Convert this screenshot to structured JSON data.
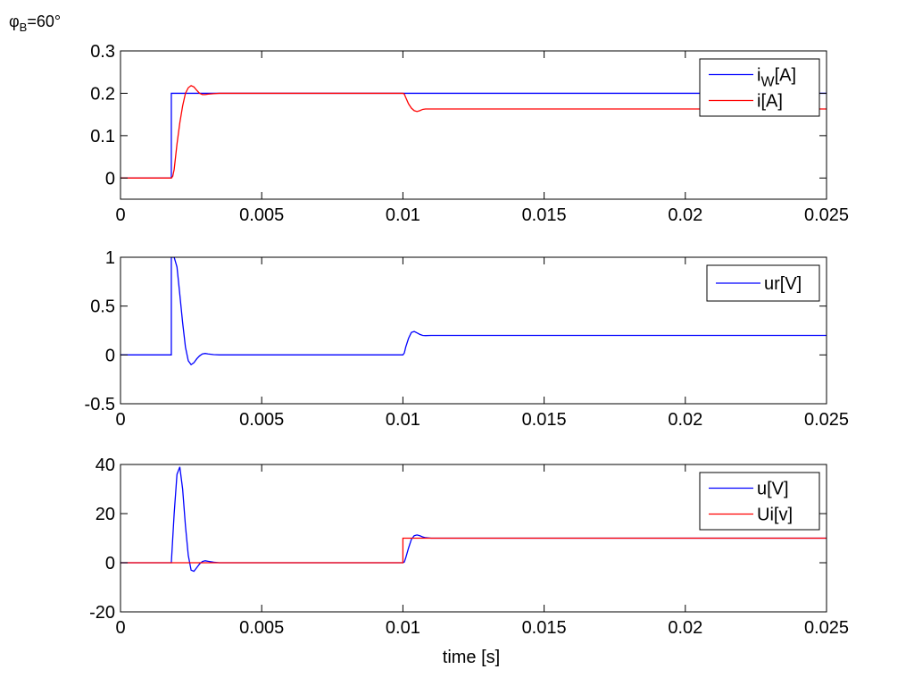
{
  "annotation": {
    "symbol": "φ",
    "subscript": "B",
    "rest": "=60°"
  },
  "xlabel": "time [s]",
  "colors": {
    "blue": "#0000ff",
    "red": "#ff0000",
    "axes": "#000000"
  },
  "chart_data": [
    {
      "type": "line",
      "xlim": [
        0,
        0.025
      ],
      "ylim": [
        -0.05,
        0.3
      ],
      "x_ticks": [
        0,
        0.005,
        0.01,
        0.015,
        0.02,
        0.025
      ],
      "x_tick_labels": [
        "0",
        "0.005",
        "0.01",
        "0.015",
        "0.02",
        "0.025"
      ],
      "y_ticks": [
        0,
        0.1,
        0.2,
        0.3
      ],
      "y_tick_labels": [
        "0",
        "0.1",
        "0.2",
        "0.3"
      ],
      "legend": "top-right",
      "grid": false,
      "series": [
        {
          "name": "i_W[A]",
          "label_main": "i",
          "label_sub": "W",
          "label_tail": "[A]",
          "color": "#0000ff",
          "x": [
            0,
            0.0018,
            0.0018,
            0.01,
            0.025
          ],
          "y": [
            0,
            0,
            0.2,
            0.2,
            0.2
          ]
        },
        {
          "name": "i[A]",
          "label_main": "i[A]",
          "color": "#ff0000",
          "x": [
            0,
            0.0018,
            0.00185,
            0.0019,
            0.00195,
            0.002,
            0.0021,
            0.0022,
            0.0023,
            0.0024,
            0.0025,
            0.0026,
            0.0027,
            0.0028,
            0.0029,
            0.003,
            0.0031,
            0.0033,
            0.0035,
            0.01,
            0.01005,
            0.0101,
            0.0102,
            0.0103,
            0.0104,
            0.0105,
            0.0106,
            0.0107,
            0.0108,
            0.011,
            0.025
          ],
          "y": [
            0,
            0,
            0.004,
            0.02,
            0.05,
            0.08,
            0.13,
            0.17,
            0.2,
            0.213,
            0.218,
            0.215,
            0.207,
            0.2,
            0.197,
            0.197,
            0.198,
            0.199,
            0.2,
            0.2,
            0.198,
            0.19,
            0.175,
            0.165,
            0.159,
            0.157,
            0.159,
            0.162,
            0.163,
            0.163,
            0.163
          ]
        }
      ]
    },
    {
      "type": "line",
      "xlim": [
        0,
        0.025
      ],
      "ylim": [
        -0.5,
        1
      ],
      "x_ticks": [
        0,
        0.005,
        0.01,
        0.015,
        0.02,
        0.025
      ],
      "x_tick_labels": [
        "0",
        "0.005",
        "0.01",
        "0.015",
        "0.02",
        "0.025"
      ],
      "y_ticks": [
        -0.5,
        0,
        0.5,
        1
      ],
      "y_tick_labels": [
        "-0.5",
        "0",
        "0.5",
        "1"
      ],
      "legend": "top-right",
      "grid": false,
      "series": [
        {
          "name": "ur[V]",
          "label_main": "ur[V]",
          "color": "#0000ff",
          "x": [
            0,
            0.0018,
            0.0018,
            0.0019,
            0.002,
            0.0021,
            0.0022,
            0.0023,
            0.0024,
            0.0025,
            0.0026,
            0.0027,
            0.0028,
            0.0029,
            0.003,
            0.0031,
            0.0033,
            0.0035,
            0.01,
            0.01005,
            0.0101,
            0.0102,
            0.0103,
            0.0104,
            0.0105,
            0.0106,
            0.0107,
            0.0108,
            0.011,
            0.025
          ],
          "y": [
            0,
            0,
            1,
            1,
            0.9,
            0.62,
            0.33,
            0.08,
            -0.06,
            -0.1,
            -0.08,
            -0.04,
            -0.01,
            0.01,
            0.015,
            0.01,
            0.003,
            0,
            0,
            0.02,
            0.08,
            0.17,
            0.23,
            0.24,
            0.225,
            0.21,
            0.2,
            0.198,
            0.2,
            0.2
          ]
        }
      ]
    },
    {
      "type": "line",
      "xlim": [
        0,
        0.025
      ],
      "ylim": [
        -20,
        40
      ],
      "x_ticks": [
        0,
        0.005,
        0.01,
        0.015,
        0.02,
        0.025
      ],
      "x_tick_labels": [
        "0",
        "0.005",
        "0.01",
        "0.015",
        "0.02",
        "0.025"
      ],
      "y_ticks": [
        -20,
        0,
        20,
        40
      ],
      "y_tick_labels": [
        "-20",
        "0",
        "20",
        "40"
      ],
      "xlabel": "time [s]",
      "legend": "top-right",
      "grid": false,
      "series": [
        {
          "name": "u[V]",
          "label_main": "u[V]",
          "color": "#0000ff",
          "x": [
            0,
            0.0018,
            0.0019,
            0.002,
            0.0021,
            0.0022,
            0.0023,
            0.0024,
            0.0025,
            0.0026,
            0.0027,
            0.0028,
            0.0029,
            0.003,
            0.0031,
            0.0033,
            0.0035,
            0.01,
            0.01005,
            0.0101,
            0.0102,
            0.0103,
            0.0104,
            0.0105,
            0.0106,
            0.0107,
            0.0108,
            0.011,
            0.025
          ],
          "y": [
            0,
            0,
            20,
            36,
            39,
            30,
            15,
            3,
            -3,
            -3.5,
            -2,
            -0.5,
            0.5,
            0.8,
            0.6,
            0.2,
            0,
            0,
            0.3,
            2,
            6,
            9.5,
            11,
            11.3,
            11,
            10.5,
            10.2,
            10,
            10
          ]
        },
        {
          "name": "Ui[v]",
          "label_main": "Ui[v]",
          "color": "#ff0000",
          "x": [
            0,
            0.01,
            0.01,
            0.025
          ],
          "y": [
            0,
            0,
            10,
            10
          ]
        }
      ]
    }
  ]
}
